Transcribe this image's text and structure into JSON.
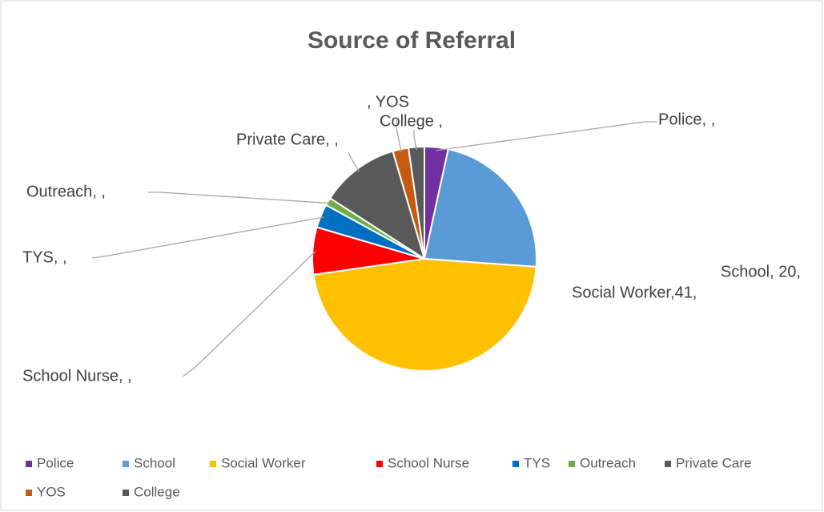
{
  "chart_data": {
    "type": "pie",
    "title": "Source of Referral",
    "categories": [
      "Police",
      "School",
      "Social Worker",
      "School Nurse",
      "TYS",
      "Outreach",
      "Private Care",
      "YOS",
      "College"
    ],
    "values": [
      3,
      20,
      41,
      6,
      3,
      1,
      10,
      2,
      2
    ],
    "value_labels": [
      "Police, ,",
      "School, 20,",
      "Social Worker,41,",
      "School Nurse, ,",
      "TYS, ,",
      "Outreach, ,",
      "Private Care, ,",
      ", YOS",
      "College ,"
    ],
    "colors": [
      "#7030a0",
      "#5b9bd5",
      "#ffc000",
      "#ff0000",
      "#0070c0",
      "#70ad47",
      "#595959",
      "#c55a11",
      "#595959"
    ],
    "legend": "bottom"
  }
}
